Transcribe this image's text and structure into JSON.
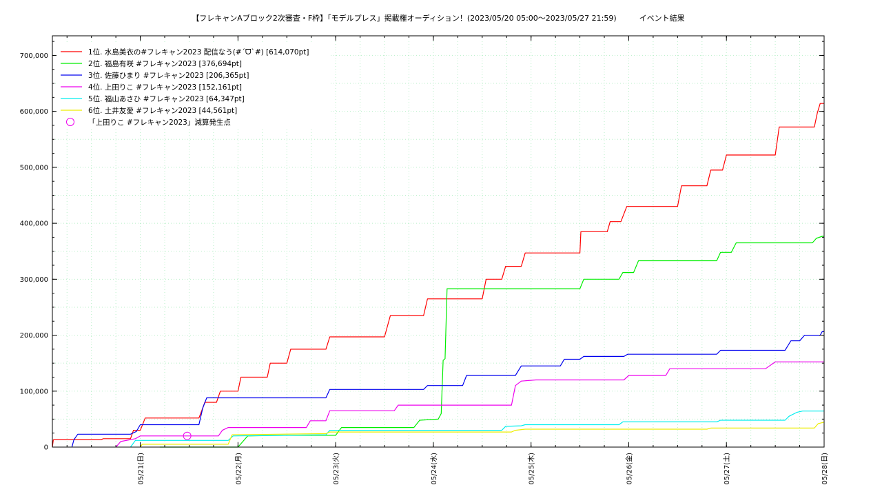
{
  "chart_data": {
    "type": "line",
    "title": "【フレキャンAブロック2次審査・F枠】「モデルプレス」掲載権オーディション！(2023/05/20 05:00〜2023/05/27 21:59)　　　イベント結果",
    "xlabel": "",
    "ylabel": "",
    "x_unit": "days since 2023/05/20 00:00",
    "xlim": [
      0.1,
      8.0
    ],
    "ylim": [
      0,
      735000
    ],
    "grid": true,
    "legend_position": "top-left",
    "y_ticks": [
      {
        "value": 0,
        "label": "0"
      },
      {
        "value": 100000,
        "label": "100,000"
      },
      {
        "value": 200000,
        "label": "200,000"
      },
      {
        "value": 300000,
        "label": "300,000"
      },
      {
        "value": 400000,
        "label": "400,000"
      },
      {
        "value": 500000,
        "label": "500,000"
      },
      {
        "value": 600000,
        "label": "600,000"
      },
      {
        "value": 700000,
        "label": "700,000"
      }
    ],
    "x_ticks": [
      {
        "value": 1,
        "label": "05/21(日)"
      },
      {
        "value": 2,
        "label": "05/22(月)"
      },
      {
        "value": 3,
        "label": "05/23(火)"
      },
      {
        "value": 4,
        "label": "05/24(水)"
      },
      {
        "value": 5,
        "label": "05/25(木)"
      },
      {
        "value": 6,
        "label": "05/26(金)"
      },
      {
        "value": 7,
        "label": "05/27(土)"
      },
      {
        "value": 8,
        "label": "05/28(日)"
      }
    ],
    "series": [
      {
        "name": "1位. 水島美衣の#フレキャン2023 配信なう(#´ᗜ`#) [614,070pt]",
        "color": "#ff0000",
        "points": [
          [
            0.1,
            0
          ],
          [
            0.11,
            13000
          ],
          [
            0.6,
            13000
          ],
          [
            0.62,
            15000
          ],
          [
            0.9,
            15000
          ],
          [
            0.93,
            30000
          ],
          [
            1.0,
            30000
          ],
          [
            1.05,
            52000
          ],
          [
            1.6,
            52000
          ],
          [
            1.64,
            70000
          ],
          [
            1.66,
            80000
          ],
          [
            1.78,
            80000
          ],
          [
            1.82,
            100000
          ],
          [
            2.0,
            100000
          ],
          [
            2.03,
            125000
          ],
          [
            2.3,
            125000
          ],
          [
            2.33,
            150000
          ],
          [
            2.5,
            150000
          ],
          [
            2.54,
            175000
          ],
          [
            2.9,
            175000
          ],
          [
            2.94,
            197000
          ],
          [
            3.5,
            197000
          ],
          [
            3.56,
            235000
          ],
          [
            3.9,
            235000
          ],
          [
            3.94,
            265000
          ],
          [
            4.5,
            265000
          ],
          [
            4.54,
            300000
          ],
          [
            4.7,
            300000
          ],
          [
            4.74,
            323000
          ],
          [
            4.9,
            323000
          ],
          [
            4.94,
            347000
          ],
          [
            5.5,
            347000
          ],
          [
            5.51,
            385000
          ],
          [
            5.78,
            385000
          ],
          [
            5.81,
            403000
          ],
          [
            5.92,
            403000
          ],
          [
            5.98,
            430000
          ],
          [
            6.5,
            430000
          ],
          [
            6.54,
            467000
          ],
          [
            6.8,
            467000
          ],
          [
            6.84,
            495000
          ],
          [
            6.96,
            495000
          ],
          [
            7.0,
            522000
          ],
          [
            7.5,
            522000
          ],
          [
            7.54,
            572000
          ],
          [
            7.9,
            572000
          ],
          [
            7.93,
            597000
          ],
          [
            7.96,
            614070
          ],
          [
            8.0,
            614070
          ]
        ]
      },
      {
        "name": "2位. 福島有咲 #フレキャン2023 [376,694pt]",
        "color": "#00ee00",
        "points": [
          [
            1.2,
            0
          ],
          [
            2.0,
            0
          ],
          [
            2.1,
            20000
          ],
          [
            2.5,
            21000
          ],
          [
            3.0,
            21000
          ],
          [
            3.06,
            35000
          ],
          [
            3.8,
            35000
          ],
          [
            3.86,
            48000
          ],
          [
            4.05,
            50000
          ],
          [
            4.08,
            60000
          ],
          [
            4.1,
            155000
          ],
          [
            4.12,
            158000
          ],
          [
            4.14,
            283000
          ],
          [
            5.5,
            283000
          ],
          [
            5.54,
            300000
          ],
          [
            5.9,
            300000
          ],
          [
            5.94,
            312000
          ],
          [
            6.05,
            312000
          ],
          [
            6.1,
            333000
          ],
          [
            6.9,
            333000
          ],
          [
            6.94,
            348000
          ],
          [
            7.05,
            348000
          ],
          [
            7.1,
            365000
          ],
          [
            7.88,
            365000
          ],
          [
            7.92,
            373000
          ],
          [
            7.98,
            376694
          ],
          [
            8.0,
            376694
          ]
        ]
      },
      {
        "name": "3位. 佐藤ひまり #フレキャン2023 [206,365pt]",
        "color": "#0000ee",
        "points": [
          [
            0.3,
            0
          ],
          [
            0.32,
            13000
          ],
          [
            0.36,
            23000
          ],
          [
            0.9,
            23000
          ],
          [
            0.96,
            28000
          ],
          [
            1.0,
            40000
          ],
          [
            1.6,
            40000
          ],
          [
            1.64,
            70000
          ],
          [
            1.68,
            88000
          ],
          [
            2.9,
            88000
          ],
          [
            2.94,
            103000
          ],
          [
            3.9,
            103000
          ],
          [
            3.94,
            110000
          ],
          [
            4.3,
            110000
          ],
          [
            4.34,
            128000
          ],
          [
            4.84,
            128000
          ],
          [
            4.9,
            145000
          ],
          [
            5.3,
            145000
          ],
          [
            5.34,
            157000
          ],
          [
            5.5,
            157000
          ],
          [
            5.54,
            162000
          ],
          [
            5.95,
            162000
          ],
          [
            5.99,
            166000
          ],
          [
            6.9,
            166000
          ],
          [
            6.94,
            173000
          ],
          [
            7.6,
            173000
          ],
          [
            7.66,
            190000
          ],
          [
            7.75,
            190000
          ],
          [
            7.8,
            200000
          ],
          [
            7.96,
            200000
          ],
          [
            7.98,
            206365
          ],
          [
            8.0,
            206365
          ]
        ]
      },
      {
        "name": "4位. 上田りこ #フレキャン2023 [152,161pt]",
        "color": "#ee00ee",
        "points": [
          [
            0.75,
            0
          ],
          [
            0.8,
            10000
          ],
          [
            0.95,
            15000
          ],
          [
            1.0,
            20000
          ],
          [
            1.8,
            20000
          ],
          [
            1.84,
            30000
          ],
          [
            1.9,
            35000
          ],
          [
            2.7,
            35000
          ],
          [
            2.74,
            47000
          ],
          [
            2.9,
            47000
          ],
          [
            2.94,
            65000
          ],
          [
            3.6,
            65000
          ],
          [
            3.64,
            75000
          ],
          [
            4.8,
            75000
          ],
          [
            4.84,
            110000
          ],
          [
            4.9,
            118000
          ],
          [
            5.05,
            120000
          ],
          [
            5.95,
            120000
          ],
          [
            6.0,
            128000
          ],
          [
            6.38,
            128000
          ],
          [
            6.42,
            140000
          ],
          [
            7.4,
            140000
          ],
          [
            7.44,
            145000
          ],
          [
            7.5,
            152161
          ],
          [
            8.0,
            152161
          ]
        ]
      },
      {
        "name": "5位. 福山あさひ #フレキャン2023 [64,347pt]",
        "color": "#00eeee",
        "points": [
          [
            0.9,
            0
          ],
          [
            0.95,
            12000
          ],
          [
            1.9,
            12000
          ],
          [
            1.95,
            20000
          ],
          [
            2.9,
            22000
          ],
          [
            2.94,
            30000
          ],
          [
            4.7,
            30000
          ],
          [
            4.74,
            37000
          ],
          [
            4.9,
            38000
          ],
          [
            4.94,
            40000
          ],
          [
            5.9,
            40000
          ],
          [
            5.94,
            45000
          ],
          [
            6.9,
            45000
          ],
          [
            6.94,
            48000
          ],
          [
            7.6,
            48000
          ],
          [
            7.64,
            55000
          ],
          [
            7.72,
            62000
          ],
          [
            7.78,
            64347
          ],
          [
            8.0,
            64347
          ]
        ]
      },
      {
        "name": "6位. 土井友愛 #フレキャン2023 [44,561pt]",
        "color": "#eeee00",
        "points": [
          [
            1.0,
            0
          ],
          [
            1.02,
            5000
          ],
          [
            1.9,
            5000
          ],
          [
            1.94,
            22000
          ],
          [
            2.9,
            24000
          ],
          [
            2.94,
            27000
          ],
          [
            4.8,
            27000
          ],
          [
            4.84,
            30000
          ],
          [
            4.94,
            32000
          ],
          [
            6.8,
            32000
          ],
          [
            6.84,
            34000
          ],
          [
            7.9,
            34000
          ],
          [
            7.94,
            42000
          ],
          [
            8.0,
            44561
          ]
        ]
      }
    ],
    "markers": [
      {
        "name": "「上田りこ #フレキャン2023」減算発生点",
        "color": "#ee00ee",
        "x": 1.48,
        "y": 20000
      }
    ]
  }
}
